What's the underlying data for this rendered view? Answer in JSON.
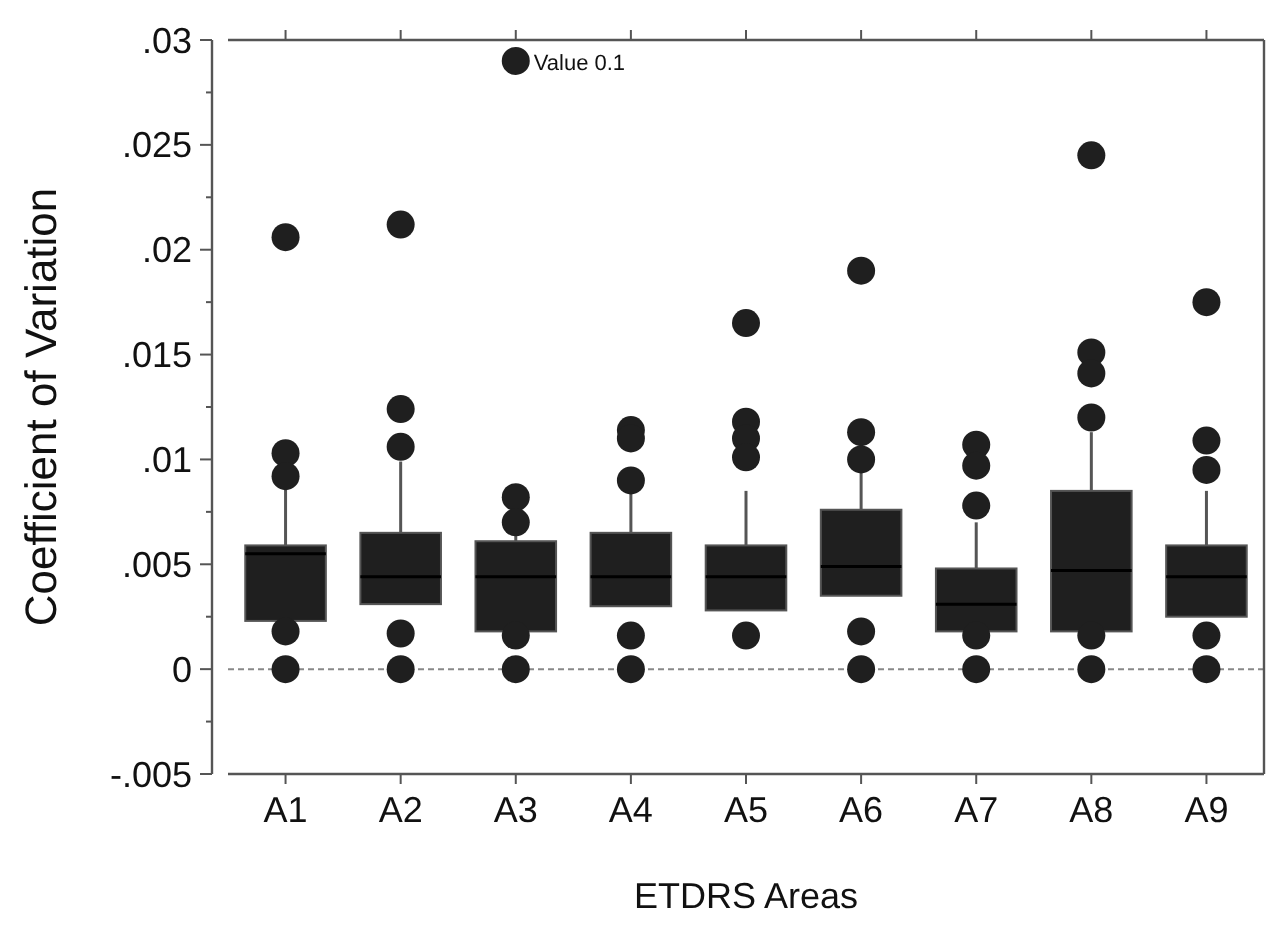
{
  "chart_data": {
    "type": "box",
    "xlabel": "ETDRS Areas",
    "ylabel": "Coefficient of Variation",
    "categories": [
      "A1",
      "A2",
      "A3",
      "A4",
      "A5",
      "A6",
      "A7",
      "A8",
      "A9"
    ],
    "color": "#1f1f1f",
    "marker": "circle",
    "grid": false,
    "ylim": [
      -0.005,
      0.03
    ],
    "yticks": [
      {
        "value": -0.005,
        "label": "-.005"
      },
      {
        "value": -0.0025,
        "label": null
      },
      {
        "value": 0,
        "label": "0"
      },
      {
        "value": 0.0025,
        "label": null
      },
      {
        "value": 0.005,
        "label": ".005"
      },
      {
        "value": 0.0075,
        "label": null
      },
      {
        "value": 0.01,
        "label": ".01"
      },
      {
        "value": 0.0125,
        "label": null
      },
      {
        "value": 0.015,
        "label": ".015"
      },
      {
        "value": 0.0175,
        "label": null
      },
      {
        "value": 0.02,
        "label": ".02"
      },
      {
        "value": 0.0225,
        "label": null
      },
      {
        "value": 0.025,
        "label": ".025"
      },
      {
        "value": 0.0275,
        "label": null
      },
      {
        "value": 0.03,
        "label": ".03"
      }
    ],
    "ref_lines": [
      {
        "axis": "y",
        "value": 0,
        "line_style": "dashed",
        "color": "#888888"
      }
    ],
    "annotations": [
      "Value 0.1"
    ],
    "boxes": [
      {
        "low": 0.0023,
        "q1": 0.0023,
        "median": 0.0055,
        "q3": 0.0059,
        "high": 0.0086,
        "outliers": [
          0.0206,
          0.0103,
          0.0092,
          0.0018,
          0
        ]
      },
      {
        "low": 0.0031,
        "q1": 0.0031,
        "median": 0.0044,
        "q3": 0.0065,
        "high": 0.0099,
        "outliers": [
          0.0212,
          0.0124,
          0.0106,
          0.0017,
          0
        ]
      },
      {
        "low": 0.0018,
        "q1": 0.0018,
        "median": 0.0044,
        "q3": 0.0061,
        "high": 0.0065,
        "outliers": [
          0.029,
          0.0082,
          0.007,
          0.0016,
          0
        ]
      },
      {
        "low": 0.003,
        "q1": 0.003,
        "median": 0.0044,
        "q3": 0.0065,
        "high": 0.0084,
        "outliers": [
          0.0114,
          0.011,
          0.009,
          0.0016,
          0
        ]
      },
      {
        "low": 0.0028,
        "q1": 0.0028,
        "median": 0.0044,
        "q3": 0.0059,
        "high": 0.0085,
        "outliers": [
          0.0165,
          0.0118,
          0.011,
          0.0101,
          0.0016
        ]
      },
      {
        "low": 0.0035,
        "q1": 0.0035,
        "median": 0.0049,
        "q3": 0.0076,
        "high": 0.0094,
        "outliers": [
          0.019,
          0.0113,
          0.01,
          0.0018,
          0
        ]
      },
      {
        "low": 0.0018,
        "q1": 0.0018,
        "median": 0.0031,
        "q3": 0.0048,
        "high": 0.007,
        "outliers": [
          0.0107,
          0.0097,
          0.0078,
          0.0016,
          0
        ]
      },
      {
        "low": 0.0018,
        "q1": 0.0018,
        "median": 0.0047,
        "q3": 0.0085,
        "high": 0.0113,
        "outliers": [
          0.0245,
          0.0151,
          0.0141,
          0.012,
          0.0016,
          0
        ]
      },
      {
        "low": 0.0025,
        "q1": 0.0025,
        "median": 0.0044,
        "q3": 0.0059,
        "high": 0.0085,
        "outliers": [
          0.0175,
          0.0109,
          0.0095,
          0.0016,
          0
        ]
      }
    ]
  }
}
